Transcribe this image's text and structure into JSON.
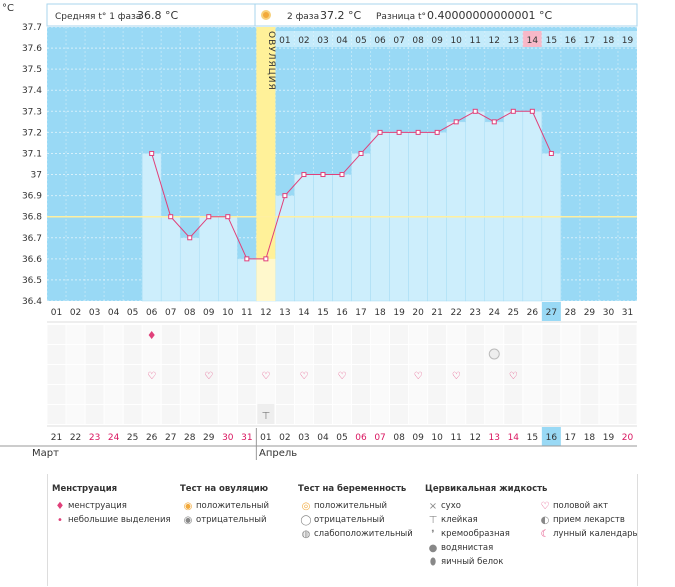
{
  "y_unit": "°C",
  "header": {
    "phase1_label": "Средняя t° 1 фаза",
    "phase1_value": "36.8 °C",
    "phase2_label": "2 фаза",
    "phase2_value": "37.2 °C",
    "diff_label": "Разница t°",
    "diff_value": "0.40000000000001 °C",
    "ovulation_label": "ОВУЛЯЦИЯ"
  },
  "chart_data": {
    "type": "line",
    "title": "",
    "ylabel": "°C",
    "ylim": [
      36.4,
      37.7
    ],
    "yticks": [
      "37.7",
      "37.6",
      "37.5",
      "37.4",
      "37.3",
      "37.2",
      "37.1",
      "37",
      "36.9",
      "36.8",
      "36.7",
      "36.6",
      "36.5",
      "36.4"
    ],
    "cycle_days": [
      "01",
      "02",
      "03",
      "04",
      "05",
      "06",
      "07",
      "08",
      "09",
      "10",
      "11",
      "12",
      "13",
      "14",
      "15",
      "16",
      "17",
      "18",
      "19",
      "20",
      "21",
      "22",
      "23",
      "24",
      "25",
      "26",
      "27",
      "28",
      "29",
      "30",
      "31"
    ],
    "luteal_days": [
      "01",
      "02",
      "03",
      "04",
      "05",
      "06",
      "07",
      "08",
      "09",
      "10",
      "11",
      "12",
      "13",
      "14",
      "15",
      "16",
      "17",
      "18",
      "19"
    ],
    "dates": [
      "21",
      "22",
      "23",
      "24",
      "25",
      "26",
      "27",
      "28",
      "29",
      "30",
      "31",
      "01",
      "02",
      "03",
      "04",
      "05",
      "06",
      "07",
      "08",
      "09",
      "10",
      "11",
      "12",
      "13",
      "14",
      "15",
      "16",
      "17",
      "18",
      "19",
      "20"
    ],
    "weekend_date_indices": [
      2,
      3,
      9,
      10,
      16,
      17,
      23,
      24,
      30
    ],
    "temperatures": [
      null,
      null,
      null,
      null,
      null,
      37.1,
      36.8,
      36.7,
      36.8,
      36.8,
      36.6,
      36.6,
      36.9,
      37.0,
      37.0,
      37.0,
      37.1,
      37.2,
      37.2,
      37.2,
      37.2,
      37.25,
      37.3,
      37.25,
      37.3,
      37.3,
      37.1,
      null,
      null,
      null,
      null
    ],
    "ovulation_day_index": 11,
    "current_day_index": 26,
    "highlight_luteal_index": 13,
    "coverline": 36.8,
    "months": [
      "Март",
      "Апрель"
    ]
  },
  "markers": {
    "menstruation_days": [
      5
    ],
    "intercourse_days": [
      5,
      8,
      11,
      13,
      15,
      19,
      21,
      24
    ],
    "cervical_sticky_days": [
      11
    ],
    "pregnancy_test_day": [
      23
    ]
  },
  "legend": {
    "menstruation": {
      "title": "Менструация",
      "items": [
        "менструация",
        "небольшие выделения"
      ]
    },
    "ovulation_test": {
      "title": "Тест на овуляцию",
      "items": [
        "положительный",
        "отрицательный"
      ]
    },
    "pregnancy_test": {
      "title": "Тест на беременность",
      "items": [
        "положительный",
        "отрицательный",
        "слабоположительный"
      ]
    },
    "cervical": {
      "title": "Цервикальная жидкость",
      "items": [
        "сухо",
        "клейкая",
        "кремообразная",
        "водянистая",
        "яичный белок"
      ]
    },
    "other": {
      "items": [
        "половой акт",
        "прием лекарств",
        "лунный календарь"
      ]
    }
  },
  "colors": {
    "sky": "#99d9f5",
    "bar": "#cdeefc",
    "ovulation": "#fff199",
    "pink": "#f7b8c8",
    "line": "#e0407a",
    "coverline": "#fff0a0",
    "current": "#99d9f5"
  }
}
